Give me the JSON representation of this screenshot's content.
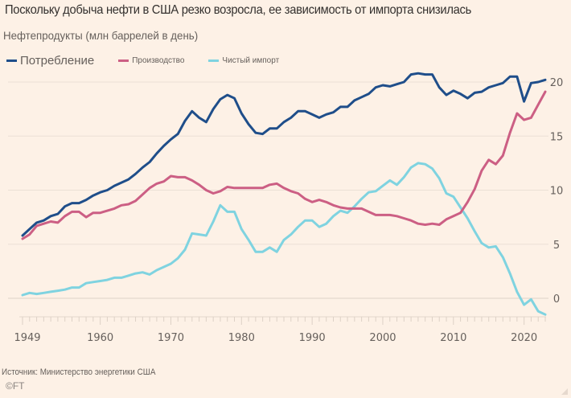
{
  "title": "Поскольку добыча нефти в США резко возросла, ее зависимость от импорта снизилась",
  "subtitle": "Нефтепродукты (млн баррелей в день)",
  "legend": [
    {
      "label": "Потребление",
      "color": "#1f4e8a"
    },
    {
      "label": "Производство",
      "color": "#cc5f84"
    },
    {
      "label": "Чистый импорт",
      "color": "#7fd3e0"
    }
  ],
  "footer": {
    "source": "Источник: Министерство энергетики США",
    "copyright": "©FT"
  },
  "chart_data": {
    "type": "line",
    "title": "Поскольку добыча нефти в США резко возросла, ее зависимость от импорта снизилась",
    "ylabel": "Нефтепродукты (млн баррелей в день)",
    "xlabel": "",
    "xlim": [
      1949,
      2023
    ],
    "ylim": [
      -2,
      21.5
    ],
    "x_ticks": [
      1949,
      1960,
      1970,
      1980,
      1990,
      2000,
      2010,
      2020
    ],
    "y_ticks": [
      0,
      5,
      10,
      15,
      20
    ],
    "grid": true,
    "y_axis_side": "right",
    "legend_position": "top-left",
    "x": [
      1949,
      1950,
      1951,
      1952,
      1953,
      1954,
      1955,
      1956,
      1957,
      1958,
      1959,
      1960,
      1961,
      1962,
      1963,
      1964,
      1965,
      1966,
      1967,
      1968,
      1969,
      1970,
      1971,
      1972,
      1973,
      1974,
      1975,
      1976,
      1977,
      1978,
      1979,
      1980,
      1981,
      1982,
      1983,
      1984,
      1985,
      1986,
      1987,
      1988,
      1989,
      1990,
      1991,
      1992,
      1993,
      1994,
      1995,
      1996,
      1997,
      1998,
      1999,
      2000,
      2001,
      2002,
      2003,
      2004,
      2005,
      2006,
      2007,
      2008,
      2009,
      2010,
      2011,
      2012,
      2013,
      2014,
      2015,
      2016,
      2017,
      2018,
      2019,
      2020,
      2021,
      2022,
      2023
    ],
    "series": [
      {
        "name": "Потребление",
        "color": "#1f4e8a",
        "values": [
          5.8,
          6.4,
          7.0,
          7.2,
          7.6,
          7.8,
          8.5,
          8.8,
          8.8,
          9.1,
          9.5,
          9.8,
          10.0,
          10.4,
          10.7,
          11.0,
          11.5,
          12.1,
          12.6,
          13.4,
          14.1,
          14.7,
          15.2,
          16.4,
          17.3,
          16.7,
          16.3,
          17.5,
          18.4,
          18.8,
          18.5,
          17.1,
          16.1,
          15.3,
          15.2,
          15.7,
          15.7,
          16.3,
          16.7,
          17.3,
          17.3,
          17.0,
          16.7,
          17.0,
          17.2,
          17.7,
          17.7,
          18.3,
          18.6,
          18.9,
          19.5,
          19.7,
          19.6,
          19.8,
          20.0,
          20.7,
          20.8,
          20.7,
          20.7,
          19.5,
          18.8,
          19.2,
          18.9,
          18.5,
          19.0,
          19.1,
          19.5,
          19.7,
          19.9,
          20.5,
          20.5,
          18.2,
          19.9,
          20.0,
          20.2
        ]
      },
      {
        "name": "Производство",
        "color": "#cc5f84",
        "values": [
          5.5,
          5.9,
          6.7,
          6.9,
          7.1,
          7.0,
          7.6,
          8.0,
          8.0,
          7.5,
          7.9,
          7.9,
          8.1,
          8.3,
          8.6,
          8.7,
          9.0,
          9.6,
          10.2,
          10.6,
          10.8,
          11.3,
          11.2,
          11.2,
          10.9,
          10.5,
          10.0,
          9.7,
          9.9,
          10.3,
          10.2,
          10.2,
          10.2,
          10.2,
          10.2,
          10.5,
          10.6,
          10.2,
          9.9,
          9.7,
          9.2,
          8.9,
          9.1,
          8.9,
          8.6,
          8.4,
          8.3,
          8.3,
          8.3,
          8.0,
          7.7,
          7.7,
          7.7,
          7.6,
          7.4,
          7.2,
          6.9,
          6.8,
          6.9,
          6.8,
          7.3,
          7.6,
          7.9,
          8.9,
          10.1,
          11.8,
          12.8,
          12.4,
          13.2,
          15.3,
          17.1,
          16.5,
          16.7,
          17.9,
          19.1
        ]
      },
      {
        "name": "Чистый импорт",
        "color": "#7fd3e0",
        "values": [
          0.3,
          0.5,
          0.4,
          0.5,
          0.6,
          0.7,
          0.8,
          1.0,
          1.0,
          1.4,
          1.5,
          1.6,
          1.7,
          1.9,
          1.9,
          2.1,
          2.3,
          2.4,
          2.2,
          2.6,
          2.9,
          3.2,
          3.7,
          4.5,
          6.0,
          5.9,
          5.8,
          7.1,
          8.6,
          8.0,
          8.0,
          6.4,
          5.4,
          4.3,
          4.3,
          4.7,
          4.3,
          5.4,
          5.9,
          6.6,
          7.2,
          7.2,
          6.6,
          6.9,
          7.6,
          8.1,
          7.9,
          8.5,
          9.2,
          9.8,
          9.9,
          10.4,
          10.9,
          10.5,
          11.2,
          12.1,
          12.5,
          12.4,
          12.0,
          11.1,
          9.7,
          9.4,
          8.4,
          7.4,
          6.2,
          5.1,
          4.7,
          4.8,
          3.8,
          2.3,
          0.6,
          -0.6,
          -0.1,
          -1.2,
          -1.5
        ]
      }
    ]
  }
}
